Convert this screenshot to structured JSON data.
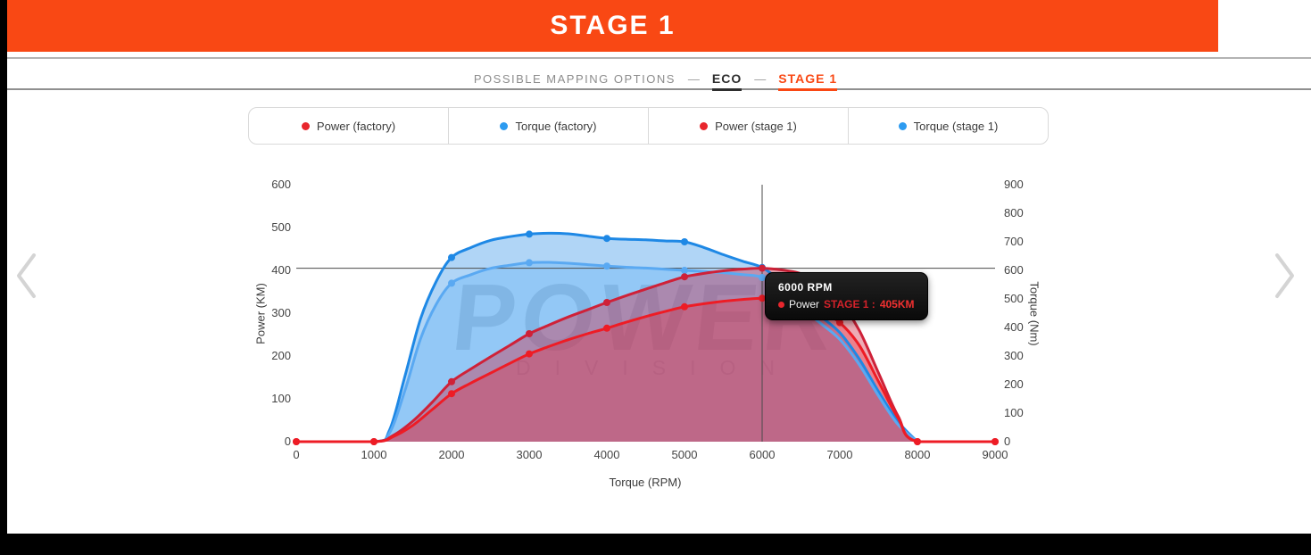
{
  "banner": {
    "title": "STAGE 1"
  },
  "nav": {
    "label": "POSSIBLE MAPPING OPTIONS",
    "separator": "—",
    "tabs": [
      {
        "label": "ECO",
        "active": false
      },
      {
        "label": "STAGE 1",
        "active": true
      }
    ]
  },
  "legend": {
    "items": [
      {
        "label": "Power (factory)",
        "color": "#e8262d"
      },
      {
        "label": "Torque (factory)",
        "color": "#2d9bf0"
      },
      {
        "label": "Power (stage 1)",
        "color": "#e8262d"
      },
      {
        "label": "Torque (stage 1)",
        "color": "#2d9bf0"
      }
    ]
  },
  "watermark": {
    "line1": "POWER",
    "line2": "DIVISION"
  },
  "tooltip": {
    "title": "6000 RPM",
    "series": "Power",
    "stage": "STAGE 1 :",
    "value": "405KM",
    "dot_color": "#e8262d"
  },
  "colors": {
    "accent": "#f94814",
    "banner_bg": "#f94814"
  },
  "chart_data": {
    "type": "line",
    "xlabel": "Torque (RPM)",
    "ylabel_left": "Power (KM)",
    "ylabel_right": "Torque (Nm)",
    "x_max": 9000,
    "x_ticks": [
      0,
      1000,
      2000,
      3000,
      4000,
      5000,
      6000,
      7000,
      8000,
      9000
    ],
    "y_left": {
      "min": 0,
      "max": 600,
      "ticks": [
        0,
        100,
        200,
        300,
        400,
        500,
        600
      ]
    },
    "y_right": {
      "min": 0,
      "max": 900,
      "ticks": [
        0,
        100,
        200,
        300,
        400,
        500,
        600,
        700,
        800,
        900
      ]
    },
    "grid": false,
    "crosshair": {
      "rpm": 6000,
      "power_km": 405
    },
    "series": [
      {
        "name": "Torque (stage 1)",
        "axis": "right",
        "units": "Nm",
        "color": "#1e88e5",
        "fill": "rgba(30,136,229,0.35)",
        "marker_rpms": [
          2000,
          3000,
          4000,
          5000,
          6000
        ],
        "points": [
          [
            0,
            0
          ],
          [
            1000,
            0
          ],
          [
            1200,
            40
          ],
          [
            1400,
            230
          ],
          [
            1600,
            430
          ],
          [
            1800,
            560
          ],
          [
            2000,
            645
          ],
          [
            2250,
            680
          ],
          [
            2500,
            705
          ],
          [
            2750,
            718
          ],
          [
            3000,
            727
          ],
          [
            3250,
            730
          ],
          [
            3500,
            728
          ],
          [
            3750,
            720
          ],
          [
            4000,
            712
          ],
          [
            4250,
            709
          ],
          [
            4500,
            707
          ],
          [
            4750,
            703
          ],
          [
            5000,
            700
          ],
          [
            5250,
            680
          ],
          [
            5500,
            655
          ],
          [
            5750,
            632
          ],
          [
            6000,
            610
          ],
          [
            6250,
            560
          ],
          [
            6500,
            500
          ],
          [
            6750,
            440
          ],
          [
            7000,
            382
          ],
          [
            7250,
            290
          ],
          [
            7500,
            175
          ],
          [
            7750,
            70
          ],
          [
            8000,
            0
          ]
        ]
      },
      {
        "name": "Torque (factory)",
        "axis": "right",
        "units": "Nm",
        "color": "#5aa9f2",
        "fill": "rgba(100,180,246,0.38)",
        "marker_rpms": [
          2000,
          3000,
          4000,
          5000,
          6000
        ],
        "points": [
          [
            0,
            0
          ],
          [
            1000,
            0
          ],
          [
            1200,
            30
          ],
          [
            1400,
            180
          ],
          [
            1600,
            360
          ],
          [
            1800,
            480
          ],
          [
            2000,
            555
          ],
          [
            2250,
            585
          ],
          [
            2500,
            607
          ],
          [
            2750,
            618
          ],
          [
            3000,
            627
          ],
          [
            3250,
            628
          ],
          [
            3500,
            625
          ],
          [
            3750,
            620
          ],
          [
            4000,
            615
          ],
          [
            4250,
            611
          ],
          [
            4500,
            608
          ],
          [
            4750,
            604
          ],
          [
            5000,
            600
          ],
          [
            5250,
            596
          ],
          [
            5500,
            592
          ],
          [
            5750,
            585
          ],
          [
            6000,
            575
          ],
          [
            6250,
            525
          ],
          [
            6500,
            468
          ],
          [
            6750,
            415
          ],
          [
            7000,
            358
          ],
          [
            7250,
            270
          ],
          [
            7500,
            160
          ],
          [
            7750,
            60
          ],
          [
            8000,
            0
          ]
        ]
      },
      {
        "name": "Power (stage 1)",
        "axis": "left",
        "units": "KM",
        "color": "#cf2138",
        "fill": "rgba(210,35,60,0.38)",
        "marker_rpms": [
          0,
          1000,
          2000,
          3000,
          4000,
          5000,
          6000,
          7000,
          8000,
          9000
        ],
        "points": [
          [
            0,
            0
          ],
          [
            1000,
            0
          ],
          [
            1250,
            15
          ],
          [
            1500,
            48
          ],
          [
            1750,
            92
          ],
          [
            2000,
            140
          ],
          [
            2250,
            170
          ],
          [
            2500,
            198
          ],
          [
            2750,
            225
          ],
          [
            3000,
            252
          ],
          [
            3250,
            272
          ],
          [
            3500,
            291
          ],
          [
            3750,
            308
          ],
          [
            4000,
            325
          ],
          [
            4250,
            341
          ],
          [
            4500,
            356
          ],
          [
            4750,
            371
          ],
          [
            5000,
            385
          ],
          [
            5250,
            393
          ],
          [
            5500,
            399
          ],
          [
            5750,
            403
          ],
          [
            6000,
            405
          ],
          [
            6250,
            401
          ],
          [
            6500,
            392
          ],
          [
            6750,
            365
          ],
          [
            7000,
            328
          ],
          [
            7250,
            260
          ],
          [
            7500,
            160
          ],
          [
            7750,
            60
          ],
          [
            8000,
            0
          ],
          [
            9000,
            0
          ]
        ]
      },
      {
        "name": "Power (factory)",
        "axis": "left",
        "units": "KM",
        "color": "#ee1c25",
        "fill": "rgba(235,30,45,0.30)",
        "marker_rpms": [
          0,
          1000,
          2000,
          3000,
          4000,
          5000,
          6000,
          7000,
          8000,
          9000
        ],
        "points": [
          [
            0,
            0
          ],
          [
            1000,
            0
          ],
          [
            1250,
            12
          ],
          [
            1500,
            38
          ],
          [
            1750,
            75
          ],
          [
            2000,
            112
          ],
          [
            2250,
            137
          ],
          [
            2500,
            160
          ],
          [
            2750,
            183
          ],
          [
            3000,
            205
          ],
          [
            3250,
            222
          ],
          [
            3500,
            238
          ],
          [
            3750,
            252
          ],
          [
            4000,
            265
          ],
          [
            4250,
            279
          ],
          [
            4500,
            292
          ],
          [
            4750,
            304
          ],
          [
            5000,
            315
          ],
          [
            5250,
            322
          ],
          [
            5500,
            328
          ],
          [
            5750,
            332
          ],
          [
            6000,
            335
          ],
          [
            6250,
            333
          ],
          [
            6500,
            325
          ],
          [
            6750,
            305
          ],
          [
            7000,
            278
          ],
          [
            7250,
            225
          ],
          [
            7500,
            140
          ],
          [
            7750,
            55
          ],
          [
            8000,
            0
          ],
          [
            9000,
            0
          ]
        ]
      }
    ]
  }
}
